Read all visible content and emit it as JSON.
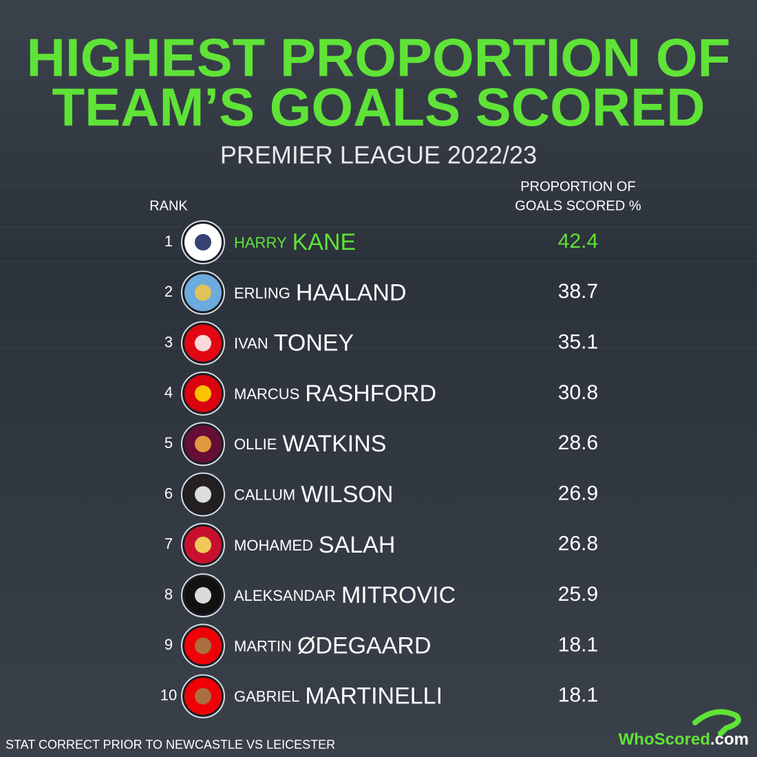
{
  "header": {
    "title": [
      "HIGHEST PROPORTION OF",
      "TEAM’S GOALS SCORED"
    ],
    "subtitle": "PREMIER LEAGUE 2022/23"
  },
  "table": {
    "columns": {
      "rank": "RANK",
      "value": [
        "PROPORTION OF",
        "GOALS SCORED %"
      ]
    },
    "rows": [
      [
        1,
        "HARRY",
        "KANE",
        42.4
      ],
      [
        2,
        "ERLING",
        "HAALAND",
        38.7
      ],
      [
        3,
        "IVAN",
        "TONEY",
        35.1
      ],
      [
        4,
        "MARCUS",
        "RASHFORD",
        30.8
      ],
      [
        5,
        "OLLIE",
        "WATKINS",
        28.6
      ],
      [
        6,
        "CALLUM",
        "WILSON",
        26.9
      ],
      [
        7,
        "MOHAMED",
        "SALAH",
        26.8
      ],
      [
        8,
        "ALEKSANDAR",
        "MITROVIC",
        25.9
      ],
      [
        9,
        "MARTIN",
        "ØDEGAARD",
        18.1
      ],
      [
        10,
        "GABRIEL",
        "MARTINELLI",
        18.1
      ]
    ]
  },
  "footer": {
    "note": "STAT CORRECT PRIOR TO NEWCASTLE VS LEICESTER",
    "logo": [
      "WhoScored",
      ".com"
    ]
  }
}
